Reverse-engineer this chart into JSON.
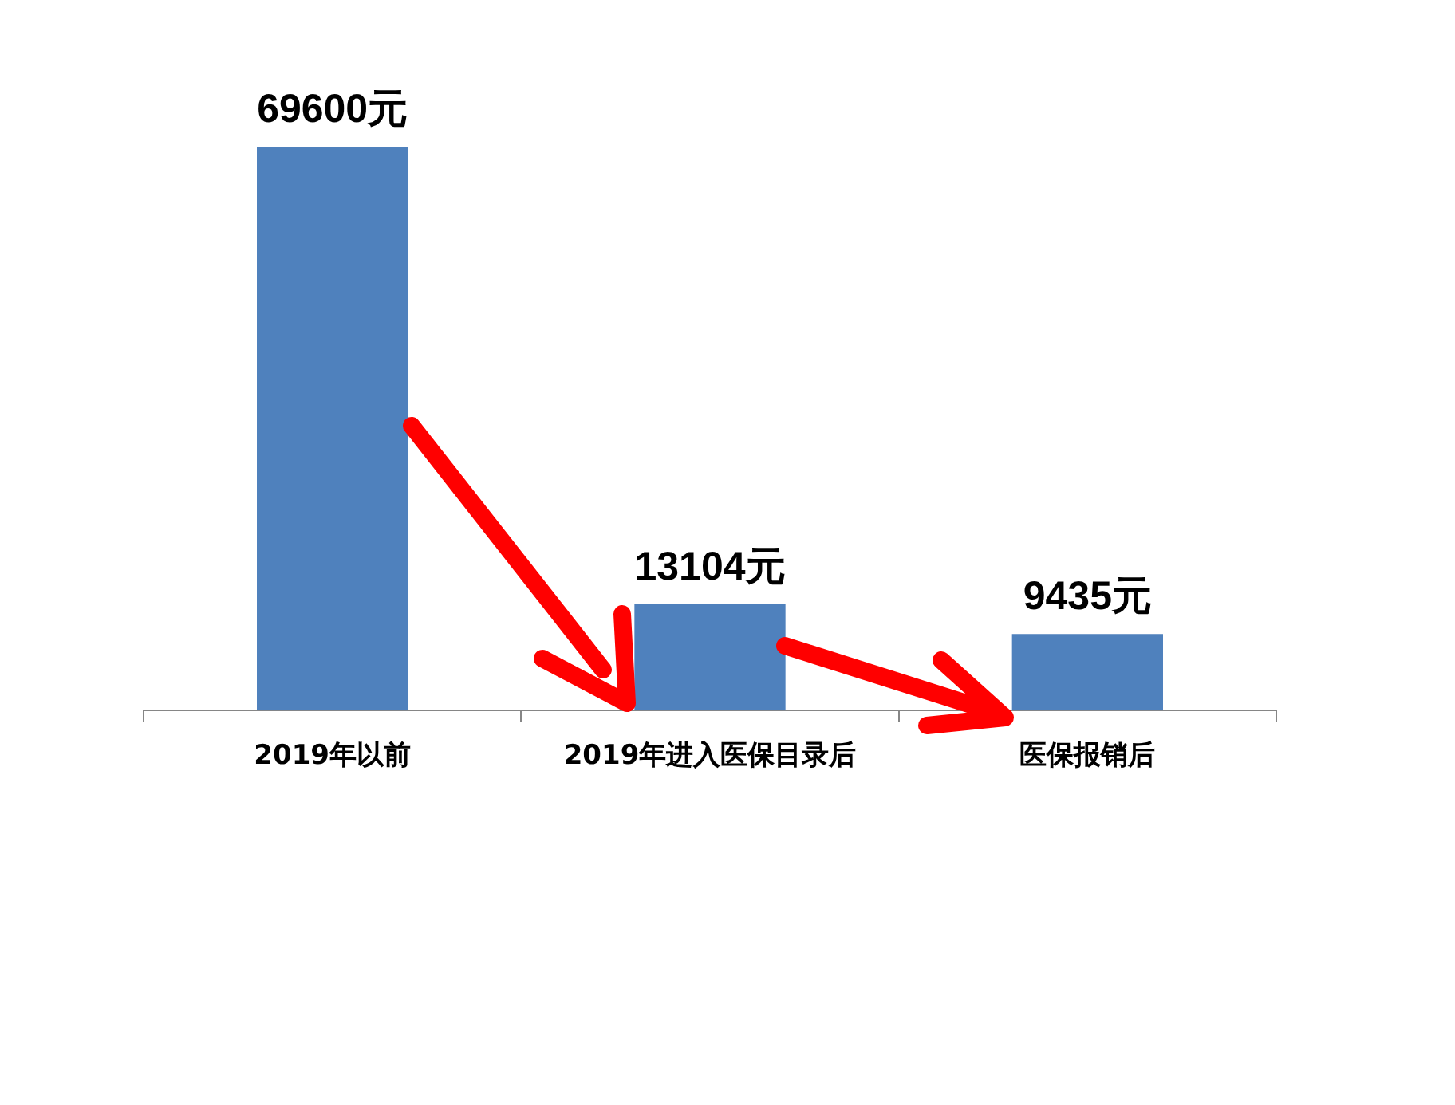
{
  "chart_data": {
    "type": "bar",
    "categories": [
      "2019年以前",
      "2019年进入医保目录后",
      "医保报销后"
    ],
    "values": [
      69600,
      13104,
      9435
    ],
    "value_labels": [
      "69600元",
      "13104元",
      "9435元"
    ],
    "color": "#4f81bd"
  }
}
